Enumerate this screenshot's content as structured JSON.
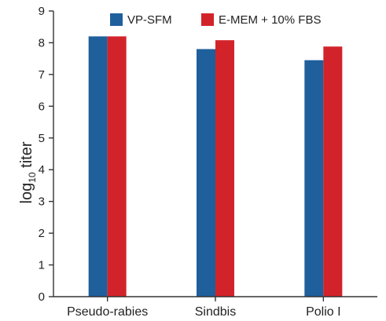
{
  "chart_data": {
    "type": "bar",
    "categories": [
      "Pseudo-rabies",
      "Sindbis",
      "Polio I"
    ],
    "series": [
      {
        "name": "VP-SFM",
        "values": [
          8.2,
          7.8,
          7.45
        ],
        "color": "#1f5f9c"
      },
      {
        "name": "E-MEM + 10% FBS",
        "values": [
          8.2,
          8.08,
          7.88
        ],
        "color": "#d2232a"
      }
    ],
    "ylabel": {
      "base": "log",
      "subscript": "10",
      "suffix": " titer"
    },
    "ylim": [
      0,
      9
    ],
    "yticks": [
      "0",
      "1",
      "2",
      "3",
      "4",
      "5",
      "6",
      "7",
      "8",
      "9"
    ],
    "grid": false,
    "legend_position": "top"
  }
}
